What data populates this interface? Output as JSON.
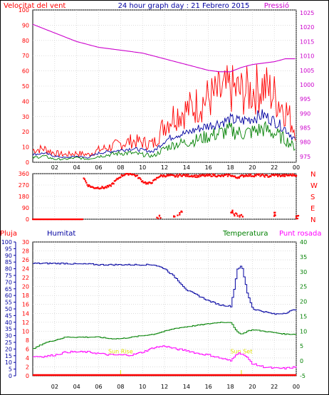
{
  "header": {
    "title": "24 hour graph day : 21 Febrero 2015",
    "left_label": "Velocitat del vent",
    "right_label": "Pressió"
  },
  "labels_bottom": {
    "rain": "Pluja",
    "humidity": "Humitat",
    "temperature": "Temperatura",
    "dewpoint": "Punt rosada"
  },
  "direction_letters": [
    "N",
    "W",
    "S",
    "E",
    "N"
  ],
  "sun_labels": {
    "rise": "Sun Rise",
    "set": "Sun Set"
  },
  "colors": {
    "wind_gust": "#ff0000",
    "wind_avg": "#0000a0",
    "wind_low": "#008000",
    "pressure": "#cc00cc",
    "direction": "#ff0000",
    "humidity": "#0000a0",
    "temperature": "#008000",
    "dewpoint": "#ff00ff",
    "rain": "#ff0000",
    "sun": "#dddd00"
  },
  "chart_data": [
    {
      "type": "line",
      "title": "24 hour graph day : 21 Febrero 2015",
      "x_tick_labels": [
        "02",
        "04",
        "06",
        "08",
        "10",
        "12",
        "14",
        "16",
        "18",
        "20",
        "22",
        "00"
      ],
      "y_left": {
        "label": "Velocitat del vent",
        "ticks": [
          0,
          10,
          20,
          30,
          40,
          50,
          60,
          70,
          80,
          90,
          100
        ],
        "ylim": [
          0,
          100
        ]
      },
      "y_right": {
        "label": "Pressió",
        "ticks": [
          975,
          980,
          985,
          990,
          995,
          1000,
          1005,
          1010,
          1015,
          1020,
          1025
        ],
        "ylim": [
          973,
          1026
        ]
      },
      "series": [
        {
          "name": "Pressió",
          "axis": "right",
          "x": [
            0,
            1,
            2,
            3,
            4,
            5,
            6,
            7,
            8,
            9,
            10,
            11,
            12,
            13,
            14,
            15,
            16,
            17,
            18,
            19,
            20,
            21,
            22,
            23,
            24
          ],
          "values": [
            1021,
            1019.5,
            1018,
            1016.5,
            1015,
            1014,
            1013,
            1012.5,
            1012,
            1011.5,
            1011,
            1010,
            1009,
            1008,
            1007,
            1006,
            1005,
            1004.5,
            1004.5,
            1006,
            1007,
            1007.5,
            1008,
            1009,
            1009
          ]
        },
        {
          "x": [
            0,
            1,
            2,
            3,
            4,
            5,
            6,
            7,
            8,
            9,
            10,
            11,
            12,
            13,
            14,
            15,
            16,
            17,
            18,
            19,
            20,
            21,
            22,
            23,
            24
          ],
          "values": [
            8,
            9,
            6,
            5,
            6,
            5,
            8,
            10,
            12,
            14,
            13,
            12,
            25,
            32,
            34,
            38,
            42,
            45,
            48,
            46,
            47,
            50,
            44,
            35,
            20
          ]
        },
        {
          "x": [
            0,
            1,
            2,
            3,
            4,
            5,
            6,
            7,
            8,
            9,
            10,
            11,
            12,
            13,
            14,
            15,
            16,
            17,
            18,
            19,
            20,
            21,
            22,
            23,
            24
          ],
          "values": [
            5,
            6,
            4,
            3,
            4,
            3,
            6,
            7,
            8,
            9,
            8,
            7,
            14,
            18,
            19,
            22,
            24,
            26,
            28,
            27,
            29,
            31,
            27,
            22,
            14
          ]
        },
        {
          "x": [
            0,
            1,
            2,
            3,
            4,
            5,
            6,
            7,
            8,
            9,
            10,
            11,
            12,
            13,
            14,
            15,
            16,
            17,
            18,
            19,
            20,
            21,
            22,
            23,
            24
          ],
          "values": [
            3,
            4,
            2,
            2,
            3,
            2,
            4,
            5,
            6,
            6,
            5,
            4,
            9,
            12,
            13,
            15,
            17,
            19,
            21,
            19,
            20,
            22,
            19,
            15,
            9
          ]
        }
      ]
    },
    {
      "type": "scatter",
      "y_ticks": [
        0,
        90,
        180,
        270,
        360
      ],
      "ylim": [
        0,
        360
      ],
      "series": [
        {
          "x": [
            0,
            0.5,
            1,
            1.5,
            2,
            2.5,
            3,
            3.5,
            4,
            4.5,
            5,
            5.5,
            6,
            6.5,
            7,
            7.5,
            8,
            8.5,
            9,
            9.5,
            10,
            10.5,
            11,
            11.5,
            12,
            12.5,
            13,
            13.5,
            14,
            14.5,
            15,
            15.5,
            16,
            16.5,
            17,
            17.5,
            18,
            18.5,
            19,
            19.5,
            20,
            20.5,
            21,
            21.5,
            22,
            22.5,
            23,
            23.5,
            24
          ],
          "values": [
            0,
            0,
            0,
            0,
            0,
            0,
            0,
            0,
            0,
            350,
            270,
            250,
            250,
            250,
            260,
            300,
            340,
            360,
            360,
            340,
            300,
            280,
            300,
            340,
            345,
            345,
            340,
            350,
            345,
            345,
            340,
            345,
            345,
            350,
            340,
            345,
            350,
            330,
            340,
            350,
            345,
            350,
            345,
            340,
            350,
            345,
            345,
            350,
            350
          ]
        },
        {
          "x": [
            11.5,
            13,
            13.5,
            18,
            18.5,
            19,
            22,
            24
          ],
          "values": [
            20,
            30,
            50,
            60,
            40,
            30,
            40,
            20
          ]
        }
      ]
    },
    {
      "type": "line",
      "x_tick_labels": [
        "02",
        "04",
        "06",
        "08",
        "10",
        "12",
        "14",
        "16",
        "18",
        "20",
        "22",
        "00"
      ],
      "y_left_outer": {
        "label": "Pluja",
        "ticks": [
          0,
          5,
          10,
          15,
          20,
          25,
          30,
          35,
          40,
          45,
          50,
          55,
          60,
          65,
          70,
          75,
          80,
          85,
          90,
          95,
          100
        ],
        "ylim": [
          0,
          100
        ]
      },
      "y_left_inner": {
        "ticks": [
          0,
          2,
          4,
          6,
          8,
          10,
          12,
          14,
          16,
          18,
          20,
          22,
          24,
          26,
          28,
          30
        ],
        "ylim": [
          0,
          30
        ]
      },
      "y_right": {
        "label": "Temperatura",
        "ticks": [
          -5,
          0,
          5,
          10,
          15,
          20,
          25,
          30,
          35,
          40
        ],
        "ylim": [
          -5,
          40
        ]
      },
      "series": [
        {
          "name": "Humitat",
          "axis": "left_outer",
          "x": [
            0,
            1,
            2,
            3,
            4,
            5,
            6,
            7,
            8,
            9,
            10,
            11,
            12,
            13,
            14,
            15,
            16,
            17,
            18,
            18.3,
            18.6,
            19,
            19.5,
            20,
            21,
            22,
            23,
            24
          ],
          "values": [
            84,
            84,
            84,
            84,
            83.5,
            83.5,
            83,
            83,
            83,
            83,
            83,
            83,
            80,
            73,
            64,
            60,
            56,
            53,
            52,
            65,
            80,
            82,
            62,
            50,
            48,
            46,
            47,
            50
          ]
        },
        {
          "name": "Temperatura",
          "axis": "right",
          "x": [
            0,
            1,
            2,
            3,
            4,
            5,
            6,
            7,
            8,
            9,
            10,
            11,
            12,
            13,
            14,
            15,
            16,
            17,
            18,
            18.5,
            19,
            19.5,
            20,
            21,
            22,
            23,
            24
          ],
          "values": [
            4,
            6,
            7,
            8,
            8,
            8,
            8,
            7.5,
            7.5,
            8,
            8.5,
            9,
            10,
            11,
            11.5,
            12,
            12.5,
            13,
            13,
            10,
            9,
            10,
            10.5,
            10,
            9.5,
            9,
            9
          ]
        },
        {
          "name": "Punt rosada",
          "axis": "right",
          "x": [
            0,
            1,
            2,
            3,
            4,
            5,
            6,
            7,
            8,
            9,
            10,
            11,
            12,
            13,
            14,
            15,
            16,
            17,
            18,
            18.5,
            19,
            19.5,
            20,
            21,
            22,
            23,
            24
          ],
          "values": [
            1.5,
            1.5,
            2,
            3,
            3,
            3,
            2.5,
            2,
            2,
            2,
            3,
            4.5,
            5,
            4,
            3.5,
            2.5,
            2,
            1,
            0,
            2.5,
            2.5,
            1,
            -1,
            -2,
            -2.5,
            -2.5,
            -2
          ]
        },
        {
          "name": "Pluja",
          "axis": "left_outer",
          "x": [
            0,
            24
          ],
          "values": [
            0,
            0
          ]
        }
      ],
      "sun": {
        "rise_hour": 8.0,
        "set_hour": 19.0
      }
    }
  ]
}
